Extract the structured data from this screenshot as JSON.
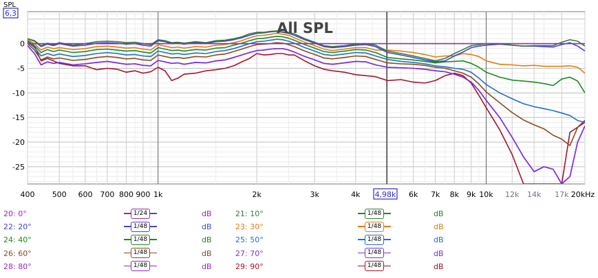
{
  "chart_data": {
    "type": "line",
    "title": "All SPL",
    "ylabel": "SPL",
    "x_scale": "log",
    "xlim": [
      400,
      20000
    ],
    "ylim": [
      -28.5,
      6.5
    ],
    "grid": true,
    "cursor": {
      "x_readout": "4,98k",
      "y_readout": "6,3"
    },
    "x_ticks": [
      {
        "v": 400,
        "label": "400",
        "dim": false
      },
      {
        "v": 500,
        "label": "500",
        "dim": false
      },
      {
        "v": 600,
        "label": "600",
        "dim": false
      },
      {
        "v": 700,
        "label": "700",
        "dim": false
      },
      {
        "v": 800,
        "label": "800",
        "dim": false
      },
      {
        "v": 900,
        "label": "900",
        "dim": false
      },
      {
        "v": 1000,
        "label": "1k",
        "dim": false
      },
      {
        "v": 2000,
        "label": "2k",
        "dim": false
      },
      {
        "v": 3000,
        "label": "3k",
        "dim": false
      },
      {
        "v": 4000,
        "label": "4k",
        "dim": false
      },
      {
        "v": 6000,
        "label": "6k",
        "dim": false
      },
      {
        "v": 7000,
        "label": "7k",
        "dim": false
      },
      {
        "v": 8000,
        "label": "8k",
        "dim": false
      },
      {
        "v": 9000,
        "label": "9k",
        "dim": false
      },
      {
        "v": 10000,
        "label": "10k",
        "dim": false
      },
      {
        "v": 12000,
        "label": "12k",
        "dim": true
      },
      {
        "v": 14000,
        "label": "14k",
        "dim": true
      },
      {
        "v": 17000,
        "label": "17k",
        "dim": true
      },
      {
        "v": 20000,
        "label": "20kHz",
        "dim": false
      }
    ],
    "y_ticks": [
      {
        "v": 0,
        "label": "0"
      },
      {
        "v": -5,
        "label": "-5"
      },
      {
        "v": -10,
        "label": "-10"
      },
      {
        "v": -15,
        "label": "-15"
      },
      {
        "v": -20,
        "label": "-20"
      },
      {
        "v": -25,
        "label": "-25"
      }
    ],
    "x": [
      400,
      420,
      440,
      460,
      480,
      500,
      550,
      600,
      650,
      700,
      750,
      800,
      850,
      900,
      950,
      1000,
      1050,
      1100,
      1150,
      1200,
      1300,
      1400,
      1500,
      1600,
      1700,
      1800,
      1900,
      2000,
      2100,
      2200,
      2300,
      2400,
      2500,
      2600,
      2800,
      3000,
      3200,
      3400,
      3700,
      4000,
      4300,
      4600,
      5000,
      5500,
      6000,
      6500,
      7000,
      7500,
      8000,
      8500,
      9000,
      9500,
      10000,
      11000,
      12000,
      13000,
      14000,
      15000,
      16000,
      17000,
      18000,
      19000,
      20000
    ],
    "series": [
      {
        "name": "20: 0°",
        "color": "#9b27b0",
        "smoothing": "1/24",
        "unit": "dB",
        "values": [
          0,
          0,
          0,
          0,
          0,
          0,
          0,
          0,
          0,
          0,
          0,
          0,
          0,
          0,
          0,
          0,
          0,
          0,
          0,
          0,
          0,
          0,
          0,
          0,
          0,
          0,
          0,
          0,
          0,
          0,
          0,
          0,
          0,
          0,
          0,
          0,
          0,
          0,
          0,
          0,
          0,
          0,
          0,
          0,
          0,
          0,
          0,
          0,
          0,
          0,
          0,
          0,
          0,
          0,
          0,
          0,
          0,
          0,
          0,
          0,
          0,
          0,
          0
        ]
      },
      {
        "name": "21: 10°",
        "color": "#2e7d32",
        "smoothing": "1/48",
        "unit": "dB",
        "values": [
          1,
          0.6,
          -0.4,
          0.1,
          -0.2,
          0.2,
          -0.3,
          0,
          0.4,
          0.5,
          0.4,
          0.2,
          0.3,
          0,
          -0.2,
          0.8,
          0.6,
          0.2,
          0.3,
          0.1,
          0.4,
          0.2,
          0.6,
          0.7,
          1,
          1.4,
          2,
          2.3,
          2.3,
          2.5,
          2.6,
          2.4,
          2.3,
          2,
          1,
          0.3,
          -0.4,
          -0.6,
          -0.4,
          -0.1,
          0,
          -0.3,
          -1.5,
          -2,
          -2.5,
          -3,
          -3.5,
          -3,
          -2,
          -1.2,
          -0.4,
          -0.2,
          0,
          0,
          -0.3,
          -0.5,
          -0.4,
          -0.4,
          -0.4,
          0.3,
          0.8,
          0.5,
          -0.5
        ]
      },
      {
        "name": "22: 20°",
        "color": "#4343d6",
        "smoothing": "1/48",
        "unit": "dB",
        "values": [
          1,
          0.5,
          -0.6,
          -0.1,
          -0.4,
          0,
          -0.5,
          -0.3,
          0.1,
          0.2,
          0.1,
          -0.1,
          0,
          -0.3,
          -0.5,
          0.6,
          0.4,
          0,
          0.1,
          -0.1,
          0.2,
          0,
          0.4,
          0.5,
          0.8,
          1.2,
          1.7,
          2.1,
          2.2,
          2.4,
          2.5,
          2.3,
          2.1,
          1.7,
          0.8,
          0.1,
          -0.6,
          -0.8,
          -0.6,
          -0.3,
          -0.2,
          -0.6,
          -1.8,
          -2.3,
          -2.8,
          -3.3,
          -3.7,
          -3.5,
          -2.5,
          -1.7,
          -0.8,
          -0.5,
          -0.3,
          -0.1,
          -0.3,
          -0.5,
          -0.5,
          -0.6,
          -0.7,
          -0.2,
          0.2,
          -0.5,
          -1.5
        ]
      },
      {
        "name": "23: 30°",
        "color": "#e57a10",
        "smoothing": "1/48",
        "unit": "dB",
        "values": [
          0.8,
          0,
          -1.3,
          -0.7,
          -1,
          -0.8,
          -1.2,
          -1,
          -0.6,
          -0.5,
          -0.7,
          -0.9,
          -0.8,
          -1.1,
          -1.3,
          -0.2,
          -0.5,
          -0.8,
          -0.7,
          -0.9,
          -0.6,
          -0.7,
          -0.3,
          -0.2,
          0.2,
          0.6,
          1.2,
          1.6,
          1.7,
          1.9,
          2.1,
          1.9,
          1.7,
          1.2,
          0.3,
          -0.4,
          -1.1,
          -1.4,
          -1.1,
          -0.8,
          -0.8,
          -1.3,
          -1.3,
          -1.5,
          -1.8,
          -2.2,
          -2.7,
          -2.5,
          -2.5,
          -2,
          -2.2,
          -2.6,
          -3.5,
          -4.2,
          -4.3,
          -4.5,
          -4.4,
          -4.6,
          -4.6,
          -4.6,
          -4.5,
          -4.8,
          -6
        ]
      },
      {
        "name": "24: 40°",
        "color": "#1b8a1b",
        "smoothing": "1/48",
        "unit": "dB",
        "values": [
          0.6,
          -0.4,
          -1.8,
          -1.2,
          -1.6,
          -1.3,
          -1.8,
          -1.6,
          -1.2,
          -1.1,
          -1.3,
          -1.5,
          -1.4,
          -1.7,
          -1.9,
          -0.8,
          -1.1,
          -1.4,
          -1.3,
          -1.5,
          -1.2,
          -1.3,
          -0.9,
          -0.8,
          -0.3,
          0.1,
          0.6,
          1,
          1.1,
          1.3,
          1.5,
          1.4,
          1.1,
          0.7,
          -0.2,
          -0.9,
          -1.6,
          -1.8,
          -1.5,
          -1.2,
          -1.3,
          -1.8,
          -2.8,
          -3.1,
          -3.3,
          -3.6,
          -3.9,
          -3.7,
          -3.6,
          -3.5,
          -4,
          -4.8,
          -5.8,
          -6.8,
          -7.4,
          -7.6,
          -7.8,
          -8.1,
          -8.5,
          -7.2,
          -6.8,
          -7.6,
          -10
        ]
      },
      {
        "name": "25: 50°",
        "color": "#1e6fc8",
        "smoothing": "1/48",
        "unit": "dB",
        "values": [
          0.3,
          -0.8,
          -2.5,
          -2,
          -2.4,
          -2.1,
          -2.6,
          -2.4,
          -2,
          -1.8,
          -2,
          -2.3,
          -2.2,
          -2.5,
          -2.6,
          -1.5,
          -1.8,
          -2.1,
          -2,
          -2.2,
          -1.9,
          -2,
          -1.6,
          -1.4,
          -1,
          -0.5,
          0,
          0.4,
          0.5,
          0.7,
          0.9,
          0.8,
          0.5,
          0.1,
          -0.8,
          -1.5,
          -2.2,
          -2.4,
          -2.1,
          -1.8,
          -1.9,
          -2.5,
          -3.2,
          -3.6,
          -3.8,
          -4.1,
          -4.5,
          -4.7,
          -5,
          -5.2,
          -5.8,
          -7,
          -8.3,
          -10,
          -11.2,
          -12.2,
          -12.8,
          -13.2,
          -13.6,
          -14.1,
          -14.6,
          -15.6,
          -16
        ]
      },
      {
        "name": "26: 60°",
        "color": "#8b4a1b",
        "smoothing": "1/48",
        "unit": "dB",
        "values": [
          0,
          -1.3,
          -3.3,
          -2.7,
          -3.1,
          -2.9,
          -3.4,
          -3.2,
          -2.8,
          -2.6,
          -2.8,
          -3.1,
          -3,
          -3.3,
          -3.4,
          -2.3,
          -2.6,
          -2.9,
          -2.8,
          -3,
          -2.6,
          -2.7,
          -2.3,
          -2.1,
          -1.6,
          -1.1,
          -0.6,
          -0.2,
          -0.1,
          0,
          0.2,
          0.1,
          -0.2,
          -0.6,
          -1.5,
          -2.2,
          -2.9,
          -3.1,
          -2.8,
          -2.5,
          -2.6,
          -3.2,
          -3.9,
          -4.1,
          -4.2,
          -4.4,
          -4.8,
          -5,
          -5.5,
          -6,
          -6.8,
          -8.2,
          -9.8,
          -12,
          -14,
          -15.5,
          -16.5,
          -17.3,
          -18.6,
          -19.4,
          -20.7,
          -17,
          -16
        ]
      },
      {
        "name": "27: 70°",
        "color": "#7b2fe0",
        "smoothing": "1/48",
        "unit": "dB",
        "values": [
          -0.4,
          -2,
          -4.3,
          -3.7,
          -4,
          -3.8,
          -4.3,
          -4.1,
          -3.8,
          -3.6,
          -3.9,
          -4.2,
          -4.1,
          -4.4,
          -4.5,
          -3.4,
          -3.7,
          -4,
          -3.9,
          -4.2,
          -3.8,
          -3.9,
          -3.5,
          -3.3,
          -2.8,
          -2.3,
          -1.8,
          -1.4,
          -1.3,
          -1.1,
          -1,
          -1,
          -1.3,
          -1.7,
          -2.6,
          -3.3,
          -4,
          -4.2,
          -3.9,
          -3.6,
          -3.7,
          -4.3,
          -4.8,
          -4.9,
          -5,
          -5.2,
          -5.5,
          -5.7,
          -6.2,
          -6.8,
          -7.8,
          -9.5,
          -11.5,
          -15,
          -19,
          -23,
          -26,
          -25,
          -25.5,
          -28.5,
          -27,
          -20,
          -16.7
        ]
      },
      {
        "name": "28: 80°",
        "color": "#8e2ac8",
        "smoothing": "1/48",
        "unit": "dB",
        "values": [
          -0.4,
          -2,
          -4.3,
          -3.7,
          -4,
          -3.8,
          -4.3,
          -4.1,
          -3.8,
          -3.6,
          -3.9,
          -4.2,
          -4.1,
          -4.4,
          -4.5,
          -3.4,
          -3.7,
          -4,
          -3.9,
          -4.2,
          -3.8,
          -3.9,
          -3.5,
          -3.3,
          -2.8,
          -2.3,
          -1.8,
          -1.4,
          -1.3,
          -1.1,
          -1,
          -1,
          -1.3,
          -1.7,
          -2.6,
          -3.3,
          -4,
          -4.2,
          -3.9,
          -3.6,
          -3.7,
          -4.3,
          -4.8,
          -4.9,
          -5,
          -5.2,
          -5.5,
          -5.7,
          -6.2,
          -6.8,
          -7.8,
          -9.5,
          -11.5,
          -15,
          -19,
          -23,
          -26,
          -25,
          -25.5,
          -28.5,
          -27,
          -20,
          -16.7
        ]
      },
      {
        "name": "29: 90°",
        "color": "#a8102a",
        "smoothing": "1/48",
        "unit": "dB",
        "values": [
          0.5,
          -0.5,
          -3.5,
          -3,
          -3.5,
          -4,
          -4.5,
          -4.5,
          -5.3,
          -5,
          -5.2,
          -5.8,
          -5.5,
          -6,
          -5.7,
          -4.8,
          -5.5,
          -7.5,
          -7,
          -6.2,
          -6,
          -5.5,
          -5.3,
          -5,
          -4.5,
          -3.7,
          -3,
          -2,
          -2.3,
          -2.2,
          -2,
          -2,
          -2.3,
          -2.3,
          -3.5,
          -4.5,
          -5.2,
          -5.5,
          -5.8,
          -6.3,
          -6.5,
          -6.7,
          -7.5,
          -7.3,
          -7.8,
          -8,
          -7.5,
          -6.5,
          -6,
          -6.5,
          -8,
          -10.5,
          -13,
          -17.5,
          -22.5,
          -28.5,
          -28.5,
          -28.5,
          -28.5,
          -28.5,
          -18,
          -17,
          -15.6
        ]
      }
    ]
  }
}
